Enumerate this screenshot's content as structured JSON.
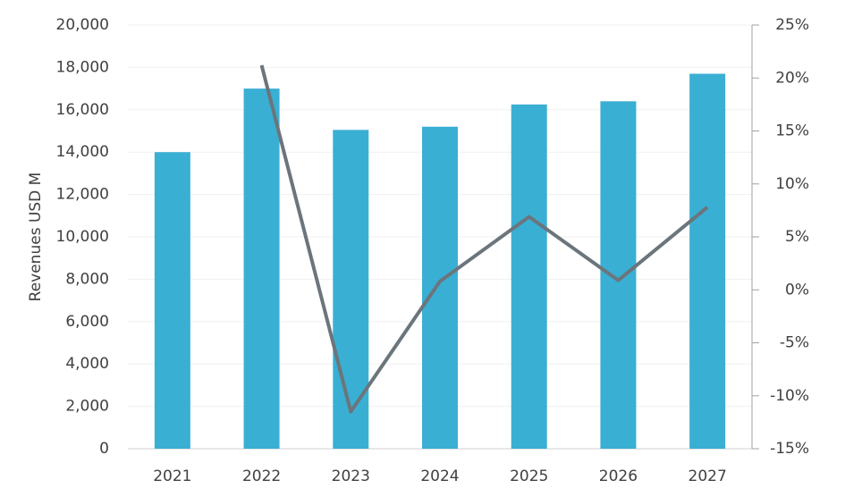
{
  "chart_data": {
    "type": "bar",
    "y_label": "Revenues USD M",
    "categories": [
      "2021",
      "2022",
      "2023",
      "2024",
      "2025",
      "2026",
      "2027"
    ],
    "series": [
      {
        "type": "bar",
        "color": "#3aafd4",
        "values": [
          14000,
          17000,
          15050,
          15200,
          16250,
          16400,
          17700
        ]
      },
      {
        "type": "line",
        "color": "#6b757c",
        "axis": "y2",
        "values": [
          null,
          21.2,
          -11.5,
          0.8,
          6.9,
          0.9,
          7.8
        ]
      }
    ],
    "ylim": [
      0,
      20000
    ],
    "yticks": [
      0,
      {
        "value": 2000,
        "label": "2,000"
      },
      {
        "value": 4000,
        "label": "4,000"
      },
      {
        "value": 6000,
        "label": "6,000"
      },
      {
        "value": 8000,
        "label": "8,000"
      },
      {
        "value": 10000,
        "label": "10,000"
      },
      {
        "value": 12000,
        "label": "12,000"
      },
      {
        "value": 14000,
        "label": "14,000"
      },
      {
        "value": 16000,
        "label": "16,000"
      },
      {
        "value": 18000,
        "label": "18,000"
      },
      {
        "value": 20000,
        "label": "20,000"
      }
    ],
    "y2lim": [
      -15,
      25
    ],
    "y2ticks": [
      {
        "value": -15,
        "label": "-15%"
      },
      {
        "value": -10,
        "label": "-10%"
      },
      {
        "value": -5,
        "label": "-5%"
      },
      {
        "value": 0,
        "label": "0%"
      },
      {
        "value": 5,
        "label": "5%"
      },
      {
        "value": 10,
        "label": "10%"
      },
      {
        "value": 15,
        "label": "15%"
      },
      {
        "value": 20,
        "label": "20%"
      },
      {
        "value": 25,
        "label": "25%"
      }
    ],
    "grid": true
  }
}
